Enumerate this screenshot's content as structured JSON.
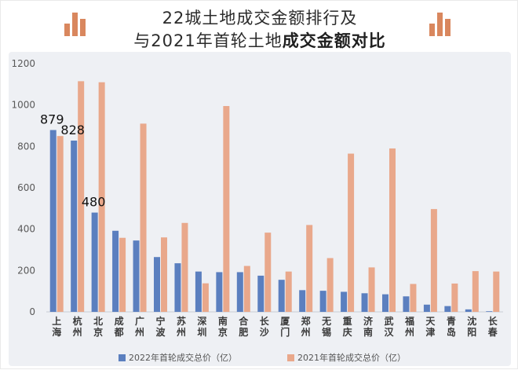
{
  "header": {
    "title_line1": "22城土地成交金额排行及",
    "title_line2_normal": "与2021年首轮土地",
    "title_line2_bold": "成交金额对比"
  },
  "colors": {
    "series_2022": "#5b7fbf",
    "series_2021": "#e9a88b",
    "logo": "#d9875e"
  },
  "icons": [
    "bar-chart-logo-icon"
  ],
  "chart_data": {
    "type": "bar",
    "categories": [
      "上海",
      "杭州",
      "北京",
      "成都",
      "广州",
      "宁波",
      "苏州",
      "深圳",
      "南京",
      "合肥",
      "长沙",
      "厦门",
      "郑州",
      "无锡",
      "重庆",
      "济南",
      "武汉",
      "福州",
      "天津",
      "青岛",
      "沈阳",
      "长春"
    ],
    "series": [
      {
        "name": "2022年首轮成交总价（亿）",
        "color": "#5b7fbf",
        "values": [
          879,
          828,
          480,
          392,
          345,
          265,
          235,
          195,
          192,
          192,
          175,
          155,
          105,
          102,
          97,
          90,
          85,
          75,
          35,
          28,
          12,
          3
        ]
      },
      {
        "name": "2021年首轮成交总价（亿）",
        "color": "#e9a88b",
        "values": [
          850,
          1115,
          1110,
          358,
          910,
          360,
          430,
          138,
          995,
          222,
          383,
          195,
          420,
          260,
          765,
          215,
          790,
          135,
          497,
          137,
          197,
          195
        ]
      }
    ],
    "data_labels": [
      {
        "category": "上海",
        "text": "879"
      },
      {
        "category": "杭州",
        "text": "828"
      },
      {
        "category": "北京",
        "text": "480"
      }
    ],
    "ylim": [
      0,
      1200
    ],
    "yticks": [
      0,
      200,
      400,
      600,
      800,
      1000,
      1200
    ],
    "xlabel": "",
    "ylabel": "",
    "grid": false,
    "legend_position": "bottom"
  }
}
